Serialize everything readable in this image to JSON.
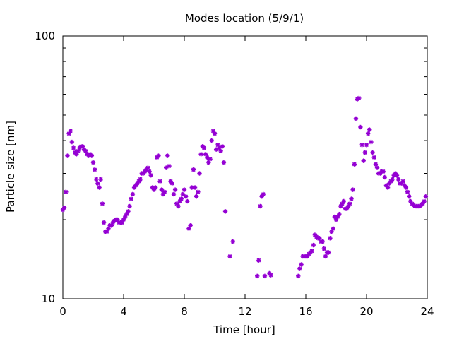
{
  "chart_data": {
    "type": "scatter",
    "title": "Modes location (5/9/1)",
    "xlabel": "Time [hour]",
    "ylabel": "Particle size [nm]",
    "xlim": [
      0,
      24
    ],
    "ylim": [
      10,
      100
    ],
    "yscale": "log",
    "xticks": [
      "0",
      "4",
      "8",
      "12",
      "16",
      "20",
      "24"
    ],
    "yticks": [
      "10",
      "100"
    ],
    "grid": false,
    "legend": "none",
    "marker_color": "#9400d3",
    "marker": "asterisk",
    "series": [
      {
        "points": [
          [
            0.0,
            21.8
          ],
          [
            0.1,
            22.2
          ],
          [
            0.2,
            25.5
          ],
          [
            0.3,
            35.0
          ],
          [
            0.4,
            42.5
          ],
          [
            0.5,
            43.5
          ],
          [
            0.6,
            39.5
          ],
          [
            0.7,
            37.5
          ],
          [
            0.8,
            36.0
          ],
          [
            0.9,
            35.5
          ],
          [
            1.0,
            36.5
          ],
          [
            1.1,
            37.5
          ],
          [
            1.2,
            38.0
          ],
          [
            1.3,
            38.0
          ],
          [
            1.4,
            37.0
          ],
          [
            1.5,
            36.5
          ],
          [
            1.6,
            35.5
          ],
          [
            1.7,
            35.0
          ],
          [
            1.8,
            35.5
          ],
          [
            1.9,
            35.0
          ],
          [
            2.0,
            33.0
          ],
          [
            2.1,
            31.0
          ],
          [
            2.2,
            28.5
          ],
          [
            2.3,
            27.5
          ],
          [
            2.4,
            26.5
          ],
          [
            2.5,
            28.5
          ],
          [
            2.6,
            23.0
          ],
          [
            2.7,
            19.5
          ],
          [
            2.8,
            18.0
          ],
          [
            2.9,
            18.0
          ],
          [
            3.0,
            18.5
          ],
          [
            3.1,
            19.0
          ],
          [
            3.2,
            19.0
          ],
          [
            3.3,
            19.5
          ],
          [
            3.4,
            19.8
          ],
          [
            3.5,
            20.0
          ],
          [
            3.6,
            20.0
          ],
          [
            3.7,
            19.5
          ],
          [
            3.8,
            19.5
          ],
          [
            3.9,
            19.5
          ],
          [
            4.0,
            20.0
          ],
          [
            4.1,
            20.5
          ],
          [
            4.2,
            21.0
          ],
          [
            4.3,
            21.5
          ],
          [
            4.4,
            22.5
          ],
          [
            4.5,
            24.0
          ],
          [
            4.6,
            25.0
          ],
          [
            4.7,
            26.5
          ],
          [
            4.8,
            27.0
          ],
          [
            4.9,
            27.5
          ],
          [
            5.0,
            28.0
          ],
          [
            5.1,
            28.5
          ],
          [
            5.2,
            30.0
          ],
          [
            5.3,
            30.0
          ],
          [
            5.4,
            30.5
          ],
          [
            5.5,
            31.0
          ],
          [
            5.6,
            31.5
          ],
          [
            5.7,
            30.5
          ],
          [
            5.8,
            29.5
          ],
          [
            5.9,
            26.5
          ],
          [
            6.0,
            26.0
          ],
          [
            6.1,
            26.5
          ],
          [
            6.2,
            34.5
          ],
          [
            6.3,
            35.0
          ],
          [
            6.4,
            28.0
          ],
          [
            6.5,
            26.0
          ],
          [
            6.6,
            25.0
          ],
          [
            6.7,
            25.5
          ],
          [
            6.8,
            31.5
          ],
          [
            6.9,
            35.0
          ],
          [
            7.0,
            32.0
          ],
          [
            7.1,
            28.0
          ],
          [
            7.2,
            27.5
          ],
          [
            7.3,
            25.0
          ],
          [
            7.4,
            26.0
          ],
          [
            7.5,
            23.0
          ],
          [
            7.6,
            22.5
          ],
          [
            7.7,
            23.5
          ],
          [
            7.8,
            24.0
          ],
          [
            7.9,
            25.0
          ],
          [
            8.0,
            26.0
          ],
          [
            8.1,
            24.5
          ],
          [
            8.2,
            23.5
          ],
          [
            8.3,
            18.5
          ],
          [
            8.4,
            19.0
          ],
          [
            8.5,
            26.5
          ],
          [
            8.6,
            31.0
          ],
          [
            8.7,
            26.5
          ],
          [
            8.8,
            24.5
          ],
          [
            8.9,
            25.5
          ],
          [
            9.0,
            30.0
          ],
          [
            9.1,
            35.5
          ],
          [
            9.2,
            38.0
          ],
          [
            9.3,
            37.5
          ],
          [
            9.4,
            35.5
          ],
          [
            9.5,
            34.5
          ],
          [
            9.6,
            33.0
          ],
          [
            9.7,
            34.0
          ],
          [
            9.8,
            40.0
          ],
          [
            9.9,
            43.5
          ],
          [
            10.0,
            42.5
          ],
          [
            10.1,
            37.0
          ],
          [
            10.2,
            38.5
          ],
          [
            10.3,
            37.5
          ],
          [
            10.4,
            36.5
          ],
          [
            10.5,
            38.0
          ],
          [
            10.6,
            33.0
          ],
          [
            10.7,
            21.5
          ],
          [
            11.0,
            14.5
          ],
          [
            11.2,
            16.5
          ],
          [
            12.8,
            12.2
          ],
          [
            12.9,
            14.0
          ],
          [
            13.0,
            22.5
          ],
          [
            13.1,
            24.5
          ],
          [
            13.2,
            25.0
          ],
          [
            13.3,
            12.2
          ],
          [
            13.6,
            12.5
          ],
          [
            13.7,
            12.3
          ],
          [
            15.5,
            12.2
          ],
          [
            15.6,
            13.0
          ],
          [
            15.7,
            13.5
          ],
          [
            15.8,
            14.5
          ],
          [
            15.9,
            14.5
          ],
          [
            16.0,
            14.5
          ],
          [
            16.1,
            14.5
          ],
          [
            16.2,
            14.8
          ],
          [
            16.3,
            15.0
          ],
          [
            16.4,
            15.2
          ],
          [
            16.5,
            16.0
          ],
          [
            16.6,
            17.5
          ],
          [
            16.7,
            17.2
          ],
          [
            16.8,
            17.0
          ],
          [
            16.9,
            17.0
          ],
          [
            17.0,
            16.5
          ],
          [
            17.1,
            16.5
          ],
          [
            17.2,
            15.5
          ],
          [
            17.3,
            14.5
          ],
          [
            17.4,
            15.0
          ],
          [
            17.5,
            15.0
          ],
          [
            17.6,
            17.0
          ],
          [
            17.7,
            18.0
          ],
          [
            17.8,
            18.5
          ],
          [
            17.9,
            20.5
          ],
          [
            18.0,
            20.0
          ],
          [
            18.1,
            20.5
          ],
          [
            18.2,
            21.0
          ],
          [
            18.3,
            22.5
          ],
          [
            18.4,
            23.0
          ],
          [
            18.5,
            23.5
          ],
          [
            18.6,
            22.0
          ],
          [
            18.7,
            22.0
          ],
          [
            18.8,
            22.5
          ],
          [
            18.9,
            23.0
          ],
          [
            19.0,
            24.0
          ],
          [
            19.1,
            26.0
          ],
          [
            19.2,
            32.5
          ],
          [
            19.3,
            48.5
          ],
          [
            19.4,
            57.5
          ],
          [
            19.5,
            58.0
          ],
          [
            19.6,
            45.0
          ],
          [
            19.7,
            38.5
          ],
          [
            19.8,
            33.5
          ],
          [
            19.9,
            36.0
          ],
          [
            20.0,
            38.5
          ],
          [
            20.1,
            42.5
          ],
          [
            20.2,
            44.0
          ],
          [
            20.3,
            39.5
          ],
          [
            20.4,
            36.0
          ],
          [
            20.5,
            34.5
          ],
          [
            20.6,
            32.5
          ],
          [
            20.7,
            31.5
          ],
          [
            20.8,
            30.0
          ],
          [
            20.9,
            30.0
          ],
          [
            21.0,
            30.5
          ],
          [
            21.1,
            30.5
          ],
          [
            21.2,
            29.0
          ],
          [
            21.3,
            27.0
          ],
          [
            21.4,
            26.5
          ],
          [
            21.5,
            27.5
          ],
          [
            21.6,
            28.0
          ],
          [
            21.7,
            28.5
          ],
          [
            21.8,
            29.5
          ],
          [
            21.9,
            30.0
          ],
          [
            22.0,
            29.5
          ],
          [
            22.1,
            28.5
          ],
          [
            22.2,
            27.5
          ],
          [
            22.3,
            27.5
          ],
          [
            22.4,
            28.0
          ],
          [
            22.5,
            27.0
          ],
          [
            22.6,
            26.5
          ],
          [
            22.7,
            25.5
          ],
          [
            22.8,
            24.5
          ],
          [
            22.9,
            23.5
          ],
          [
            23.0,
            23.0
          ],
          [
            23.1,
            22.7
          ],
          [
            23.2,
            22.5
          ],
          [
            23.3,
            22.5
          ],
          [
            23.4,
            22.5
          ],
          [
            23.5,
            22.5
          ],
          [
            23.6,
            22.8
          ],
          [
            23.7,
            23.0
          ],
          [
            23.8,
            23.5
          ],
          [
            23.9,
            24.5
          ]
        ]
      }
    ]
  }
}
